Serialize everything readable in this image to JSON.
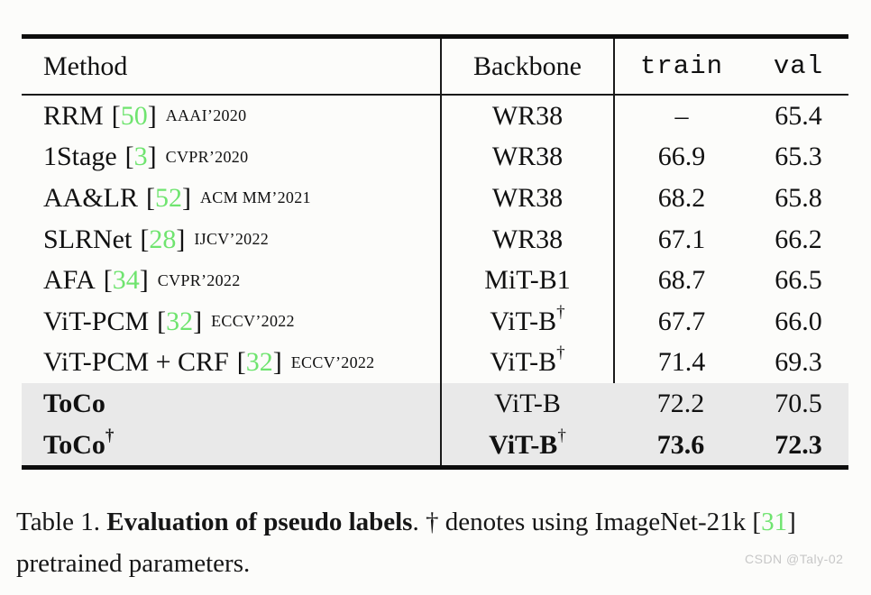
{
  "colors": {
    "cite_green": "#6fe46f",
    "row_highlight": "#e9e9e9",
    "rule_black": "#0d0d0d",
    "watermark_gray": "#c7c7c7"
  },
  "header": {
    "method": "Method",
    "backbone": "Backbone",
    "train": "train",
    "val": "val"
  },
  "rows": [
    {
      "method": "RRM",
      "cite": {
        "open": "[",
        "num": "50",
        "close": "]"
      },
      "venue": "AAAI’2020",
      "backbone": "WR38",
      "train": "–",
      "val": "65.4"
    },
    {
      "method": "1Stage",
      "cite": {
        "open": "[",
        "num": "3",
        "close": "]"
      },
      "venue": "CVPR’2020",
      "backbone": "WR38",
      "train": "66.9",
      "val": "65.3"
    },
    {
      "method": "AA&LR",
      "cite": {
        "open": "[",
        "num": "52",
        "close": "]"
      },
      "venue": "ACM MM’2021",
      "backbone": "WR38",
      "train": "68.2",
      "val": "65.8"
    },
    {
      "method": "SLRNet",
      "cite": {
        "open": "[",
        "num": "28",
        "close": "]"
      },
      "venue": "IJCV’2022",
      "backbone": "WR38",
      "train": "67.1",
      "val": "66.2"
    },
    {
      "method": "AFA",
      "cite": {
        "open": "[",
        "num": "34",
        "close": "]"
      },
      "venue": "CVPR’2022",
      "backbone": "MiT-B1",
      "train": "68.7",
      "val": "66.5"
    },
    {
      "method": "ViT-PCM",
      "cite": {
        "open": "[",
        "num": "32",
        "close": "]"
      },
      "venue": "ECCV’2022",
      "backbone": "ViT-B",
      "backbone_sup": "†",
      "train": "67.7",
      "val": "66.0"
    },
    {
      "method": "ViT-PCM + CRF",
      "cite": {
        "open": "[",
        "num": "32",
        "close": "]"
      },
      "venue": "ECCV’2022",
      "backbone": "ViT-B",
      "backbone_sup": "†",
      "train": "71.4",
      "val": "69.3"
    },
    {
      "method": "ToCo",
      "backbone": "ViT-B",
      "train": "72.2",
      "val": "70.5"
    },
    {
      "method": "ToCo",
      "method_sup": "†",
      "backbone": "ViT-B",
      "backbone_sup": "†",
      "train": "73.6",
      "val": "72.3"
    }
  ],
  "caption": {
    "prefix": "Table 1. ",
    "bold": "Evaluation of pseudo labels",
    "mid": ". † denotes using ImageNet-21k ",
    "cite": {
      "open": "[",
      "num": "31",
      "close": "]"
    },
    "suffix": " pretrained parameters."
  },
  "watermark": "CSDN @Taly-02"
}
